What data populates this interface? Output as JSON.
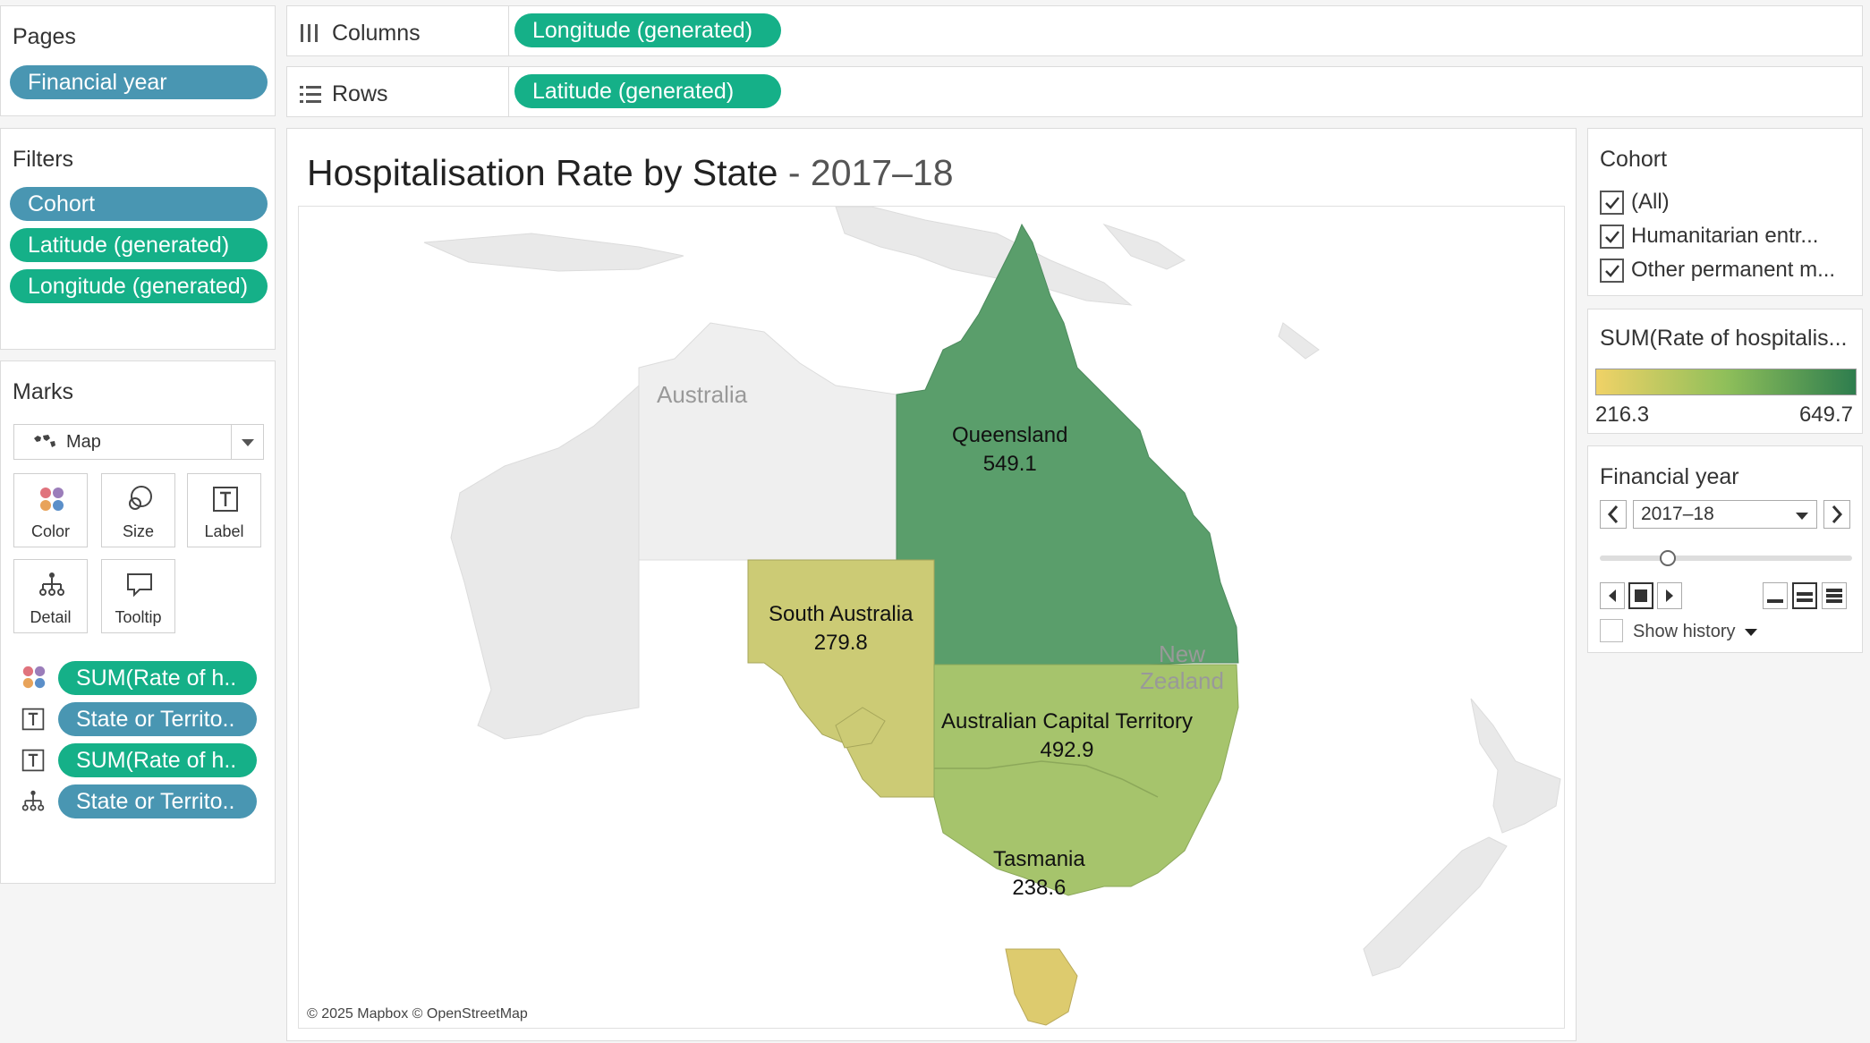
{
  "pages": {
    "title": "Pages",
    "pill": "Financial year"
  },
  "shelves": {
    "columns": {
      "label": "Columns",
      "pill": "Longitude (generated)"
    },
    "rows": {
      "label": "Rows",
      "pill": "Latitude (generated)"
    }
  },
  "filters": {
    "title": "Filters",
    "pills": [
      "Cohort",
      "Latitude (generated)",
      "Longitude (generated)"
    ]
  },
  "marks": {
    "title": "Marks",
    "type": "Map",
    "buttons": [
      "Color",
      "Size",
      "Label",
      "Detail",
      "Tooltip"
    ],
    "fields": [
      "SUM(Rate of h..",
      "State or Territo..",
      "SUM(Rate of h..",
      "State or Territo.."
    ]
  },
  "map": {
    "title": "Hospitalisation Rate by State",
    "year": " - 2017–18",
    "credit": "© 2025 Mapbox © OpenStreetMap",
    "places": {
      "australia": "Australia",
      "nz_line1": "New",
      "nz_line2": "Zealand"
    },
    "states": [
      {
        "name": "Queensland",
        "value": "549.1"
      },
      {
        "name": "South Australia",
        "value": "279.8"
      },
      {
        "name": "Australian Capital Territory",
        "value": "492.9"
      },
      {
        "name": "Tasmania",
        "value": "238.6"
      }
    ]
  },
  "cohort": {
    "title": "Cohort",
    "items": [
      "(All)",
      "Humanitarian entr...",
      "Other permanent m..."
    ]
  },
  "legend": {
    "title": "SUM(Rate of hospitalis...",
    "min": "216.3",
    "max": "649.7",
    "colors": {
      "low": "#f0d267",
      "mid": "#8fbf5a",
      "high": "#2e7d4e"
    }
  },
  "financial_year": {
    "title": "Financial year",
    "value": "2017–18",
    "show_history": "Show history"
  },
  "colors": {
    "queensland": "#5a9e6b",
    "south_australia": "#cccb75",
    "act": "#a6c46c",
    "tasmania": "#ddcb6e",
    "land": "#e9e9e9"
  }
}
